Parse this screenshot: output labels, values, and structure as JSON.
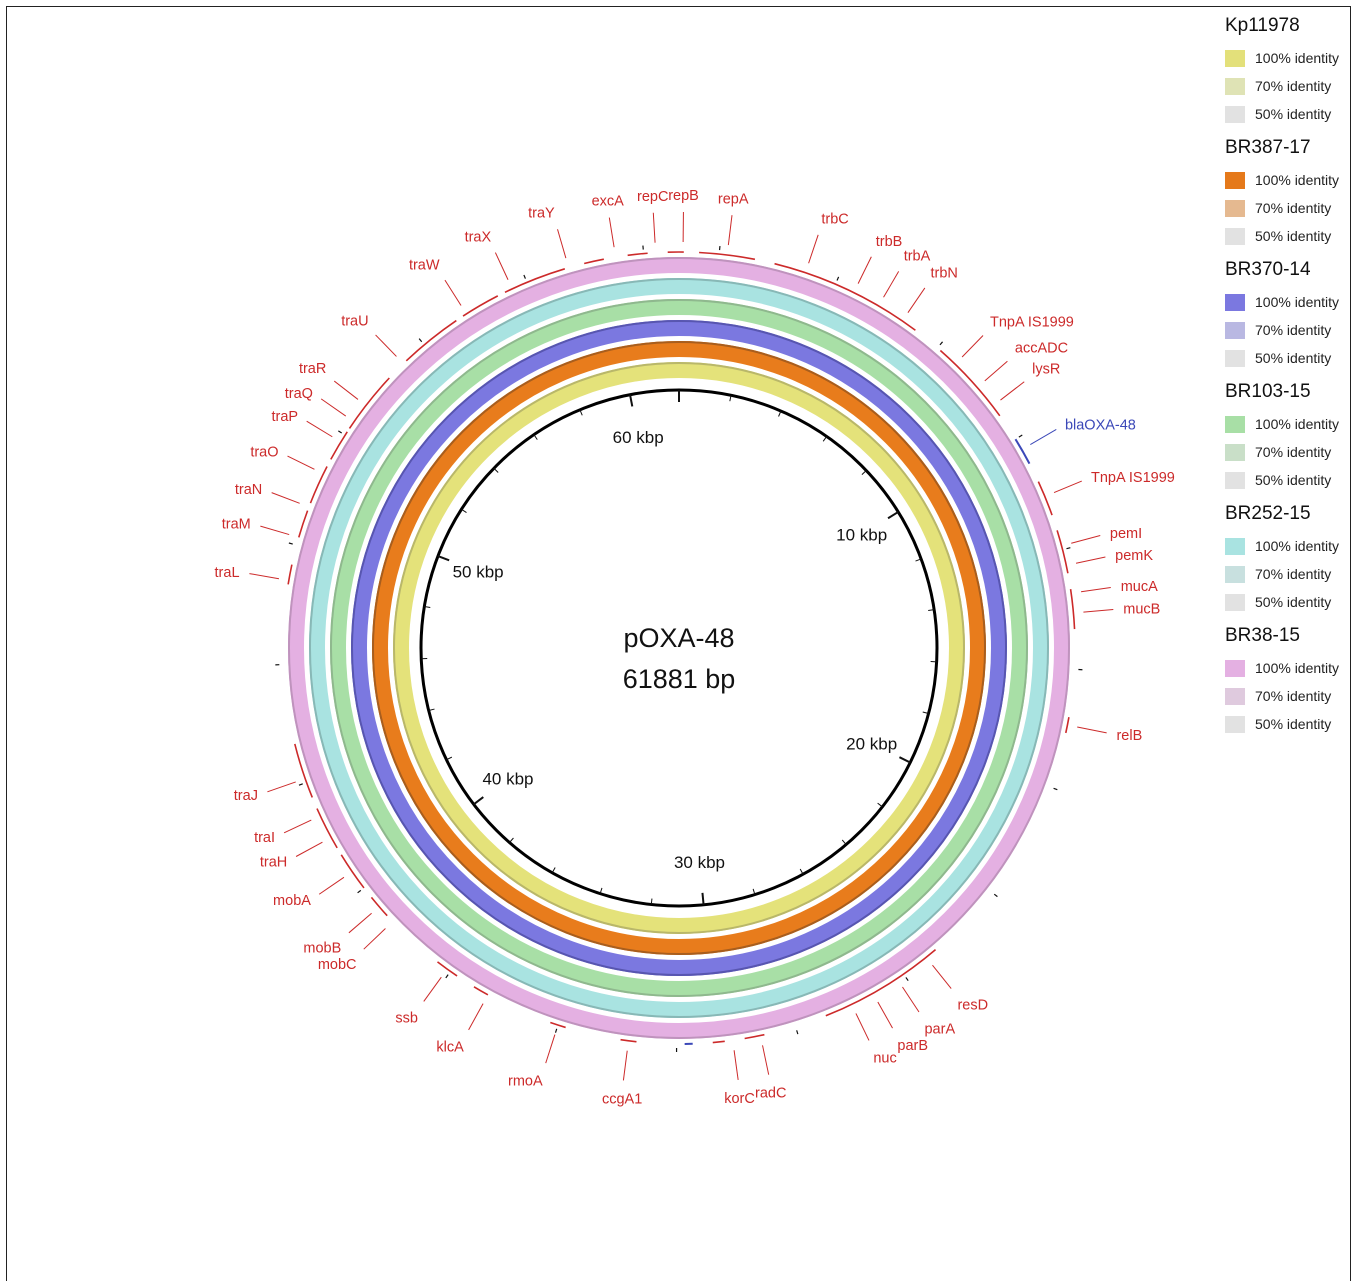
{
  "plasmid": {
    "name": "pOXA-48",
    "length_label": "61881 bp",
    "length_bp": 61881
  },
  "scale_labels": [
    {
      "kbp": 10,
      "text": "10 kbp"
    },
    {
      "kbp": 20,
      "text": "20 kbp"
    },
    {
      "kbp": 30,
      "text": "30 kbp"
    },
    {
      "kbp": 40,
      "text": "40 kbp"
    },
    {
      "kbp": 50,
      "text": "50 kbp"
    },
    {
      "kbp": 60,
      "text": "60 kbp"
    }
  ],
  "rings": [
    {
      "name": "Kp11978",
      "color": "#e4e27a",
      "dark": "#b9b76a"
    },
    {
      "name": "BR387-17",
      "color": "#e87c1c",
      "dark": "#a85e1e"
    },
    {
      "name": "BR370-14",
      "color": "#7b78e0",
      "dark": "#5856b0"
    },
    {
      "name": "BR103-15",
      "color": "#a8dfa6",
      "dark": "#8fb88e"
    },
    {
      "name": "BR252-15",
      "color": "#a9e3e1",
      "dark": "#88b8b6"
    },
    {
      "name": "BR38-15",
      "color": "#e4b0e2",
      "dark": "#bf93bd"
    }
  ],
  "legend": [
    {
      "title": "Kp11978",
      "items": [
        {
          "label": "100% identity",
          "color": "#e3e07a"
        },
        {
          "label": "70% identity",
          "color": "#dfe3b5"
        },
        {
          "label": "50% identity",
          "color": "#e2e2e2"
        }
      ]
    },
    {
      "title": "BR387-17",
      "items": [
        {
          "label": "100% identity",
          "color": "#e5791a"
        },
        {
          "label": "70% identity",
          "color": "#e5b990"
        },
        {
          "label": "50% identity",
          "color": "#e2e2e2"
        }
      ]
    },
    {
      "title": "BR370-14",
      "items": [
        {
          "label": "100% identity",
          "color": "#7b78e0"
        },
        {
          "label": "70% identity",
          "color": "#b9b8e2"
        },
        {
          "label": "50% identity",
          "color": "#e2e2e2"
        }
      ]
    },
    {
      "title": "BR103-15",
      "items": [
        {
          "label": "100% identity",
          "color": "#a8dfa6"
        },
        {
          "label": "70% identity",
          "color": "#c9dfc8"
        },
        {
          "label": "50% identity",
          "color": "#e2e2e2"
        }
      ]
    },
    {
      "title": "BR252-15",
      "items": [
        {
          "label": "100% identity",
          "color": "#a9e3e1"
        },
        {
          "label": "70% identity",
          "color": "#c8e0df"
        },
        {
          "label": "50% identity",
          "color": "#e2e2e2"
        }
      ]
    },
    {
      "title": "BR38-15",
      "items": [
        {
          "label": "100% identity",
          "color": "#e4b0e2"
        },
        {
          "label": "70% identity",
          "color": "#dfcade"
        },
        {
          "label": "50% identity",
          "color": "#e2e2e2"
        }
      ]
    }
  ],
  "colors": {
    "gene": "#cc2a2a",
    "highlight": "#3b48b8",
    "backbone": "#000000"
  },
  "genes": [
    {
      "label": "repA",
      "kbp": 1.2
    },
    {
      "label": "repB",
      "kbp": 0.1
    },
    {
      "label": "repC",
      "kbp": 61.3
    },
    {
      "label": "excA",
      "kbp": 60.3
    },
    {
      "label": "traY",
      "kbp": 59.1
    },
    {
      "label": "traX",
      "kbp": 57.6
    },
    {
      "label": "traW",
      "kbp": 56.3
    },
    {
      "label": "traU",
      "kbp": 54.3
    },
    {
      "label": "traR",
      "kbp": 52.9
    },
    {
      "label": "traQ",
      "kbp": 52.4
    },
    {
      "label": "traP",
      "kbp": 51.8
    },
    {
      "label": "traO",
      "kbp": 50.9
    },
    {
      "label": "traN",
      "kbp": 50.0
    },
    {
      "label": "traM",
      "kbp": 49.2
    },
    {
      "label": "traL",
      "kbp": 48.1
    },
    {
      "label": "traJ",
      "kbp": 43.1
    },
    {
      "label": "traI",
      "kbp": 42.1
    },
    {
      "label": "traH",
      "kbp": 41.5
    },
    {
      "label": "mobA",
      "kbp": 40.5
    },
    {
      "label": "mobB",
      "kbp": 39.4
    },
    {
      "label": "mobC",
      "kbp": 38.9
    },
    {
      "label": "ssb",
      "kbp": 37.1
    },
    {
      "label": "klcA",
      "kbp": 35.9
    },
    {
      "label": "rmoA",
      "kbp": 34.0
    },
    {
      "label": "ccgA1",
      "kbp": 32.2
    },
    {
      "label": "korC",
      "kbp": 29.6
    },
    {
      "label": "radC",
      "kbp": 28.9
    },
    {
      "label": "nuc",
      "kbp": 26.5
    },
    {
      "label": "parB",
      "kbp": 25.9
    },
    {
      "label": "parA",
      "kbp": 25.2
    },
    {
      "label": "resD",
      "kbp": 24.3
    },
    {
      "label": "relB",
      "kbp": 17.4
    },
    {
      "label": "mucB",
      "kbp": 14.6
    },
    {
      "label": "mucA",
      "kbp": 14.1
    },
    {
      "label": "pemK",
      "kbp": 13.4
    },
    {
      "label": "pemI",
      "kbp": 12.9
    },
    {
      "label": "TnpA IS1999",
      "kbp": 11.6
    },
    {
      "label": "blaOXA-48",
      "kbp": 10.3,
      "highlight": true
    },
    {
      "label": "lysR",
      "kbp": 9.0
    },
    {
      "label": "accADC",
      "kbp": 8.4
    },
    {
      "label": "TnpA IS1999",
      "kbp": 7.6
    },
    {
      "label": "trbN",
      "kbp": 5.9
    },
    {
      "label": "trbA",
      "kbp": 5.2
    },
    {
      "label": "trbB",
      "kbp": 4.5
    },
    {
      "label": "trbC",
      "kbp": 3.2
    }
  ],
  "gene_arcs": [
    [
      0.5,
      1.9
    ],
    [
      61.6,
      62.0
    ],
    [
      60.6,
      61.1
    ],
    [
      59.5,
      60.0
    ],
    [
      57.4,
      59.0
    ],
    [
      56.2,
      57.2
    ],
    [
      54.4,
      56.0
    ],
    [
      52.2,
      53.8
    ],
    [
      51.3,
      52.1
    ],
    [
      50.1,
      51.1
    ],
    [
      49.2,
      49.9
    ],
    [
      48.0,
      48.5
    ],
    [
      42.6,
      44.0
    ],
    [
      41.2,
      42.3
    ],
    [
      40.0,
      41.0
    ],
    [
      39.1,
      39.7
    ],
    [
      36.8,
      37.4
    ],
    [
      35.9,
      36.3
    ],
    [
      33.8,
      34.2
    ],
    [
      32.0,
      32.4
    ],
    [
      29.8,
      30.1
    ],
    [
      28.8,
      29.3
    ],
    [
      24.0,
      27.2
    ],
    [
      17.2,
      17.6
    ],
    [
      14.0,
      15.0
    ],
    [
      12.5,
      13.6
    ],
    [
      11.2,
      12.1
    ],
    [
      7.1,
      9.3
    ],
    [
      2.4,
      6.3
    ]
  ],
  "highlight_arcs": [
    [
      10.0,
      10.7
    ],
    [
      30.6,
      30.8
    ]
  ]
}
